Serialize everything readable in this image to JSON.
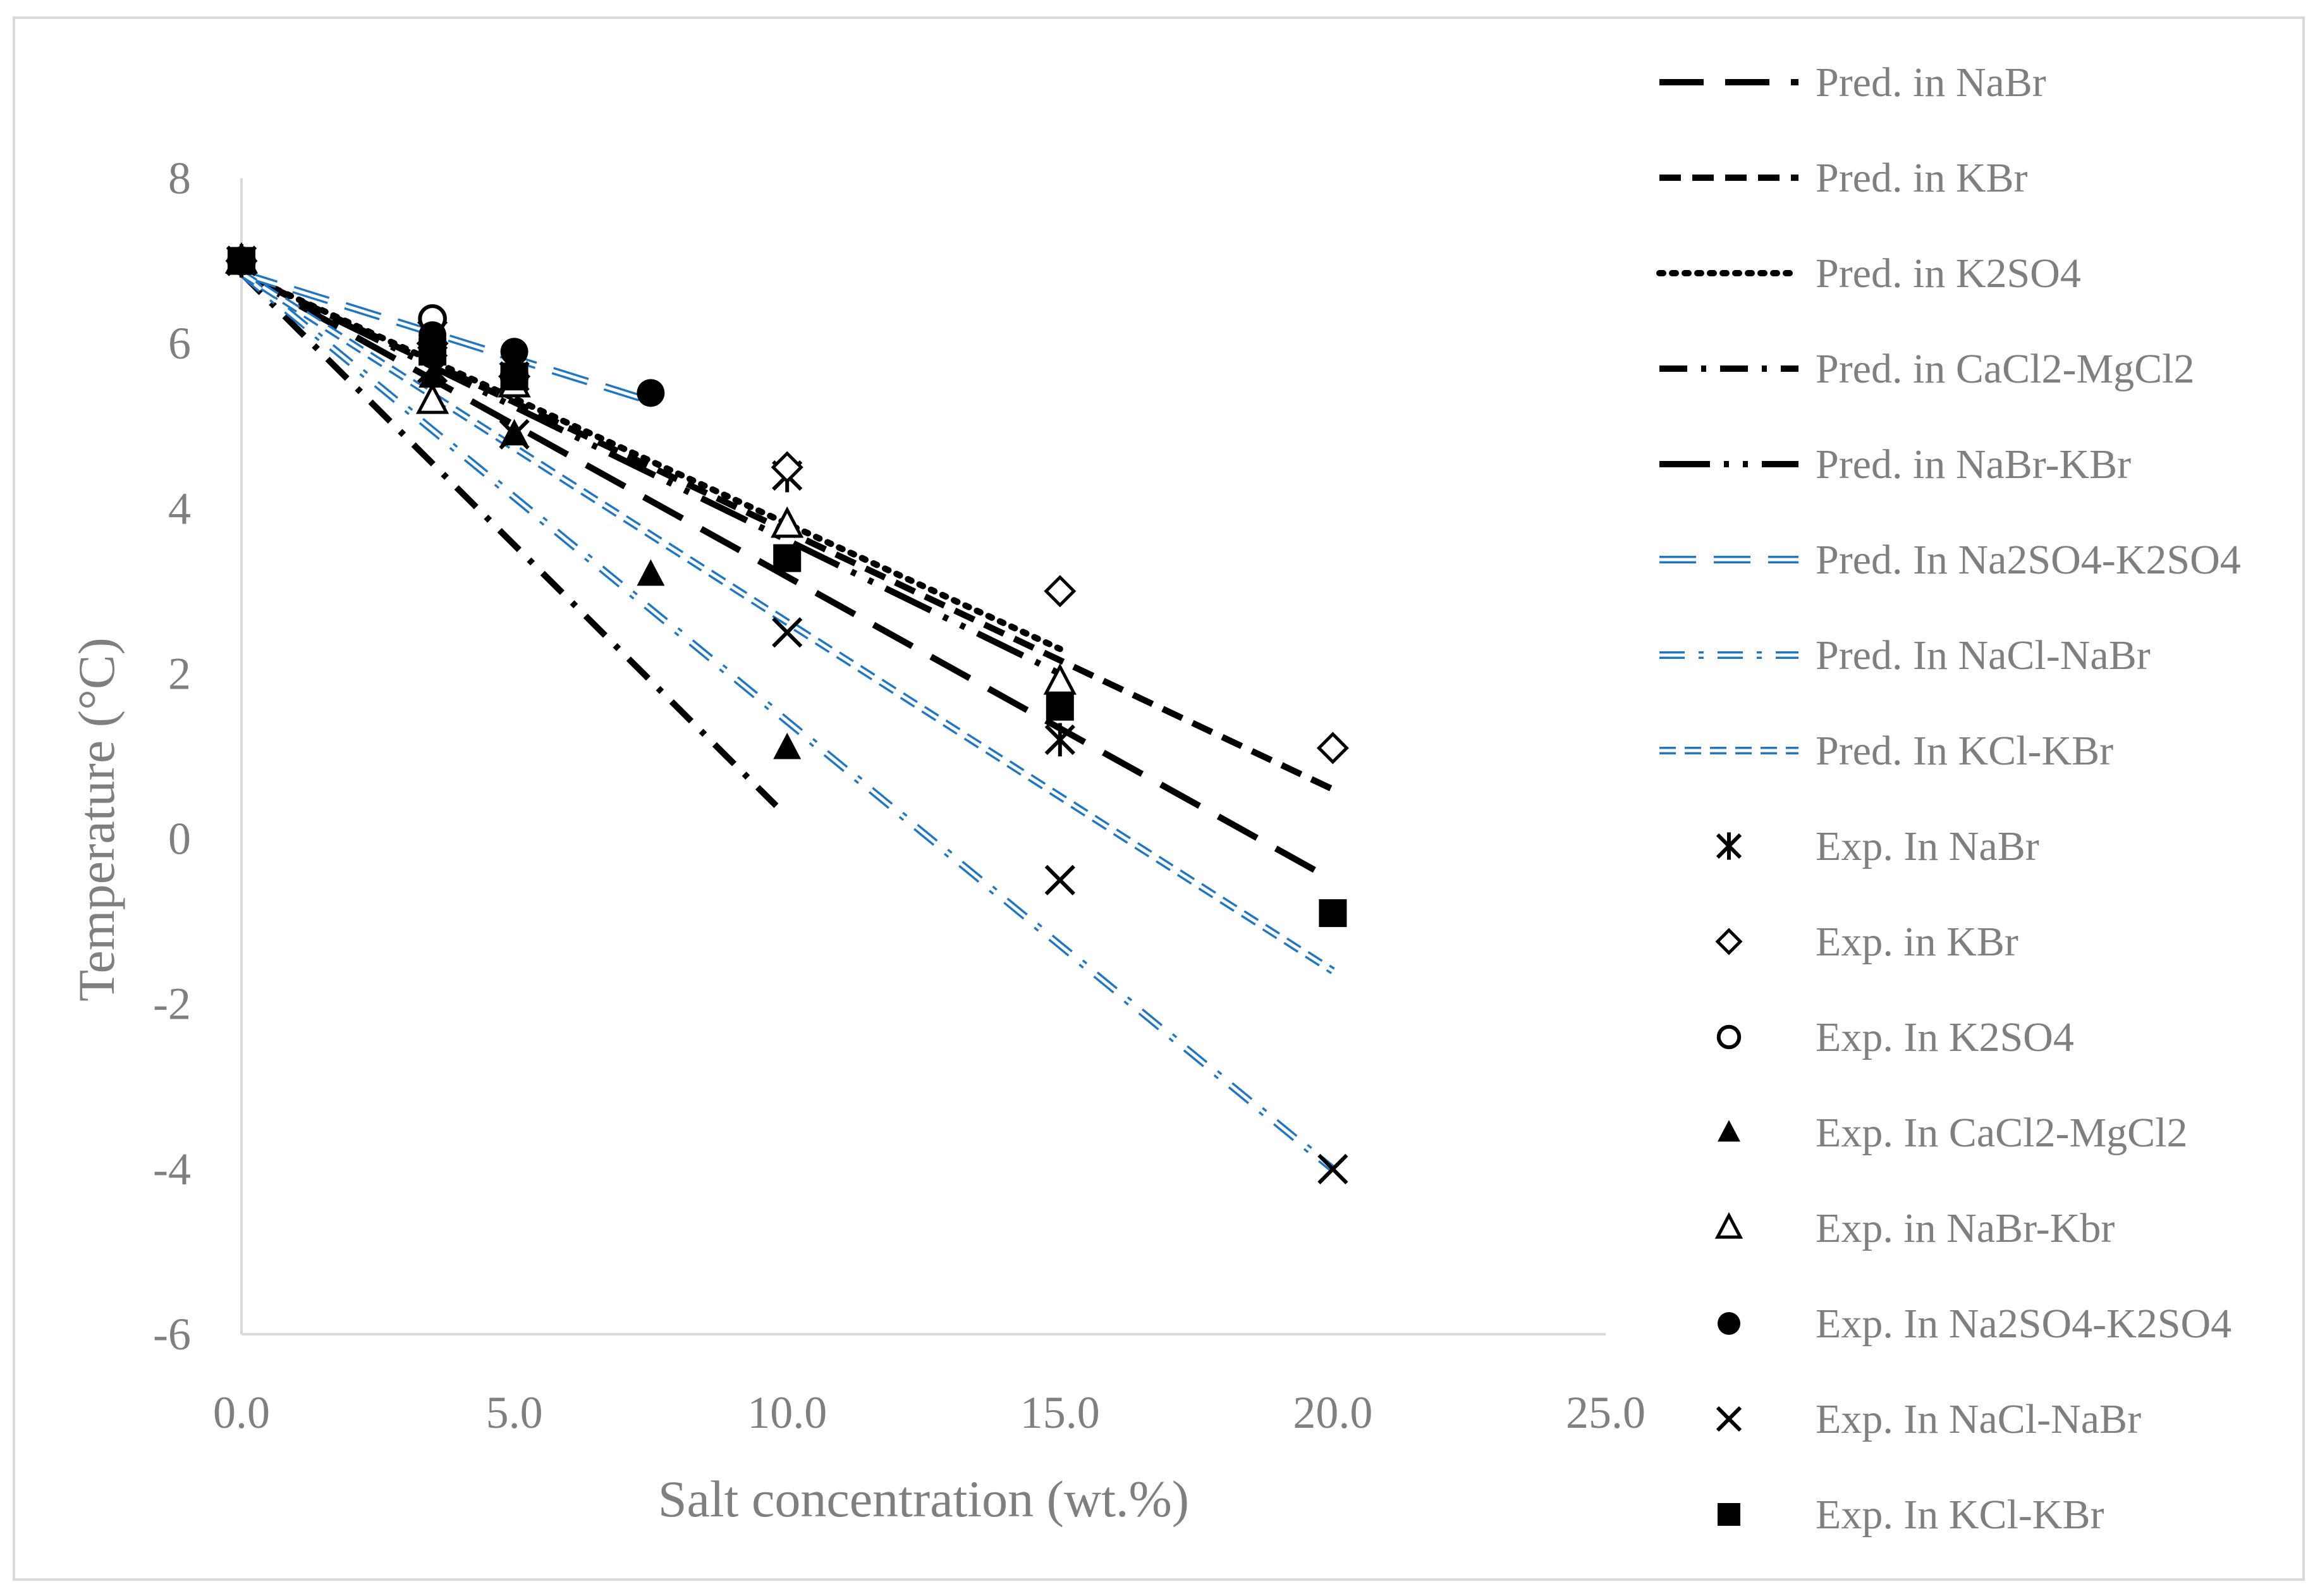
{
  "chart_data": {
    "type": "scatter",
    "title": "",
    "xlabel": "Salt concentration (wt.%)",
    "ylabel": "Temperature (°C)",
    "xlim": [
      0,
      25
    ],
    "ylim": [
      -6,
      8
    ],
    "x_ticks": [
      "0.0",
      "5.0",
      "10.0",
      "15.0",
      "20.0",
      "25.0"
    ],
    "y_ticks": [
      "-6",
      "-4",
      "-2",
      "0",
      "2",
      "4",
      "6",
      "8"
    ],
    "grid": false,
    "legend_position": "right",
    "series": [
      {
        "name": "Pred. in NaBr",
        "kind": "line",
        "style": "dash-long",
        "color": "#000000",
        "x": [
          0,
          20
        ],
        "y": [
          6.85,
          -0.5
        ]
      },
      {
        "name": "Pred. in KBr",
        "kind": "line",
        "style": "dash-short",
        "color": "#000000",
        "x": [
          0,
          20
        ],
        "y": [
          6.85,
          0.6
        ]
      },
      {
        "name": "Pred. in K2SO4",
        "kind": "line",
        "style": "dotted",
        "color": "#000000",
        "x": [
          0,
          15
        ],
        "y": [
          6.85,
          2.3
        ]
      },
      {
        "name": "Pred. in CaCl2-MgCl2",
        "kind": "line",
        "style": "dash-dot",
        "color": "#000000",
        "x": [
          0,
          9.8
        ],
        "y": [
          6.85,
          0.4
        ]
      },
      {
        "name": "Pred. in NaBr-KBr",
        "kind": "line",
        "style": "long-dash-dot-dot",
        "color": "#000000",
        "x": [
          0,
          15
        ],
        "y": [
          6.85,
          2.0
        ]
      },
      {
        "name": "Pred. In Na2SO4-K2SO4",
        "kind": "line",
        "style": "double-dash-long",
        "color": "#1f77c4",
        "x": [
          0,
          7.5
        ],
        "y": [
          6.85,
          5.3
        ]
      },
      {
        "name": "Pred. In NaCl-NaBr",
        "kind": "line",
        "style": "double-dash-dot",
        "color": "#1f77c4",
        "x": [
          0,
          20
        ],
        "y": [
          6.85,
          -4.0
        ]
      },
      {
        "name": "Pred. In KCl-KBr",
        "kind": "line",
        "style": "double-dash-short",
        "color": "#1f77c4",
        "x": [
          0,
          20
        ],
        "y": [
          6.85,
          -1.6
        ]
      },
      {
        "name": "Exp. In NaBr",
        "kind": "points",
        "marker": "asterisk",
        "x": [
          0,
          3.5,
          5,
          10,
          15
        ],
        "y": [
          7.0,
          6.1,
          5.6,
          4.4,
          1.2
        ]
      },
      {
        "name": "Exp. in KBr",
        "kind": "points",
        "marker": "diamond-open",
        "x": [
          0,
          3.5,
          5,
          10,
          15,
          20
        ],
        "y": [
          7.0,
          6.0,
          5.6,
          4.5,
          3.0,
          1.1
        ]
      },
      {
        "name": "Exp. In K2SO4",
        "kind": "points",
        "marker": "circle-open",
        "x": [
          0,
          3.5,
          5
        ],
        "y": [
          7.0,
          6.3,
          5.6
        ]
      },
      {
        "name": "Exp. In CaCl2-MgCl2",
        "kind": "points",
        "marker": "triangle-filled",
        "x": [
          0,
          3.5,
          5,
          7.5,
          10
        ],
        "y": [
          7.0,
          5.6,
          4.9,
          3.2,
          1.1
        ]
      },
      {
        "name": "Exp. in NaBr-Kbr",
        "kind": "points",
        "marker": "triangle-open",
        "x": [
          0,
          3.5,
          5,
          10,
          15
        ],
        "y": [
          7.0,
          5.3,
          5.5,
          3.8,
          1.9
        ]
      },
      {
        "name": "Exp. In Na2SO4-K2SO4",
        "kind": "points",
        "marker": "circle-filled",
        "x": [
          0,
          3.5,
          5,
          7.5
        ],
        "y": [
          7.0,
          6.1,
          5.9,
          5.4
        ]
      },
      {
        "name": "Exp. In NaCl-NaBr",
        "kind": "points",
        "marker": "x",
        "x": [
          0,
          3.5,
          5,
          10,
          15,
          20
        ],
        "y": [
          7.0,
          5.7,
          4.9,
          2.5,
          -0.5,
          -4.0
        ]
      },
      {
        "name": "Exp. In KCl-KBr",
        "kind": "points",
        "marker": "square-filled",
        "x": [
          0,
          3.5,
          5,
          10,
          15,
          20
        ],
        "y": [
          7.0,
          5.9,
          5.6,
          3.4,
          1.6,
          -0.9
        ]
      }
    ]
  }
}
